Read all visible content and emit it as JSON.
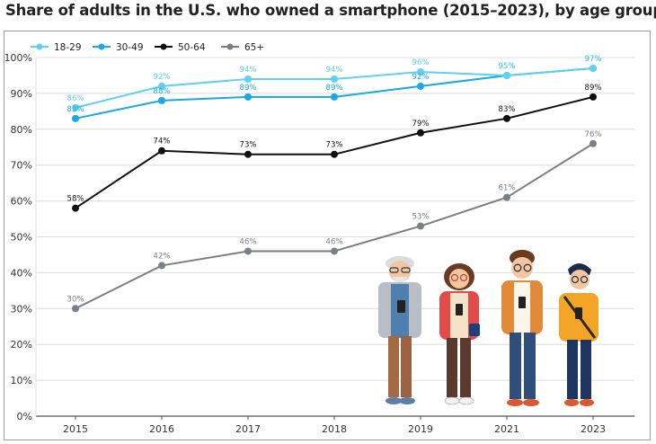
{
  "title": "Share of adults in the U.S. who owned a smartphone (2015–2023), by age group",
  "colors": {
    "18-29": "#5fd0ef",
    "30-49": "#1aa8e6",
    "50-64": "#111111",
    "65+": "#7c7f86",
    "grid": "#dcdcdc",
    "axis": "#555555"
  },
  "chart_data": {
    "type": "line",
    "title": "Share of adults in the U.S. who owned a smartphone (2015–2023), by age group",
    "xlabel": "",
    "ylabel": "",
    "categories": [
      "2015",
      "2016",
      "2017",
      "2018",
      "2019",
      "2021",
      "2023"
    ],
    "ylim": [
      0,
      100
    ],
    "yticks": [
      "0%",
      "10%",
      "20%",
      "30%",
      "40%",
      "50%",
      "60%",
      "70%",
      "80%",
      "90%",
      "100%"
    ],
    "grid": true,
    "legend_position": "top-left",
    "series": [
      {
        "name": "18-29",
        "values": [
          86,
          92,
          94,
          94,
          96,
          95,
          97
        ],
        "labels": [
          "86%",
          "92%",
          "94%",
          "94%",
          "96%",
          "95%",
          "97%"
        ]
      },
      {
        "name": "30-49",
        "values": [
          83,
          88,
          89,
          89,
          92,
          95,
          97
        ],
        "labels": [
          "83%",
          "88%",
          "89%",
          "89%",
          "92%",
          "95%",
          "97%"
        ]
      },
      {
        "name": "50-64",
        "values": [
          58,
          74,
          73,
          73,
          79,
          83,
          89
        ],
        "labels": [
          "58%",
          "74%",
          "73%",
          "73%",
          "79%",
          "83%",
          "89%"
        ]
      },
      {
        "name": "65+",
        "values": [
          30,
          42,
          46,
          46,
          53,
          61,
          76
        ],
        "labels": [
          "30%",
          "42%",
          "46%",
          "46%",
          "53%",
          "61%",
          "76%"
        ]
      }
    ]
  },
  "illustration": {
    "figures": [
      "elderly-man-phone-figure",
      "woman-glasses-phone-figure",
      "young-man-glasses-phone-figure",
      "teen-boy-phone-figure"
    ]
  }
}
